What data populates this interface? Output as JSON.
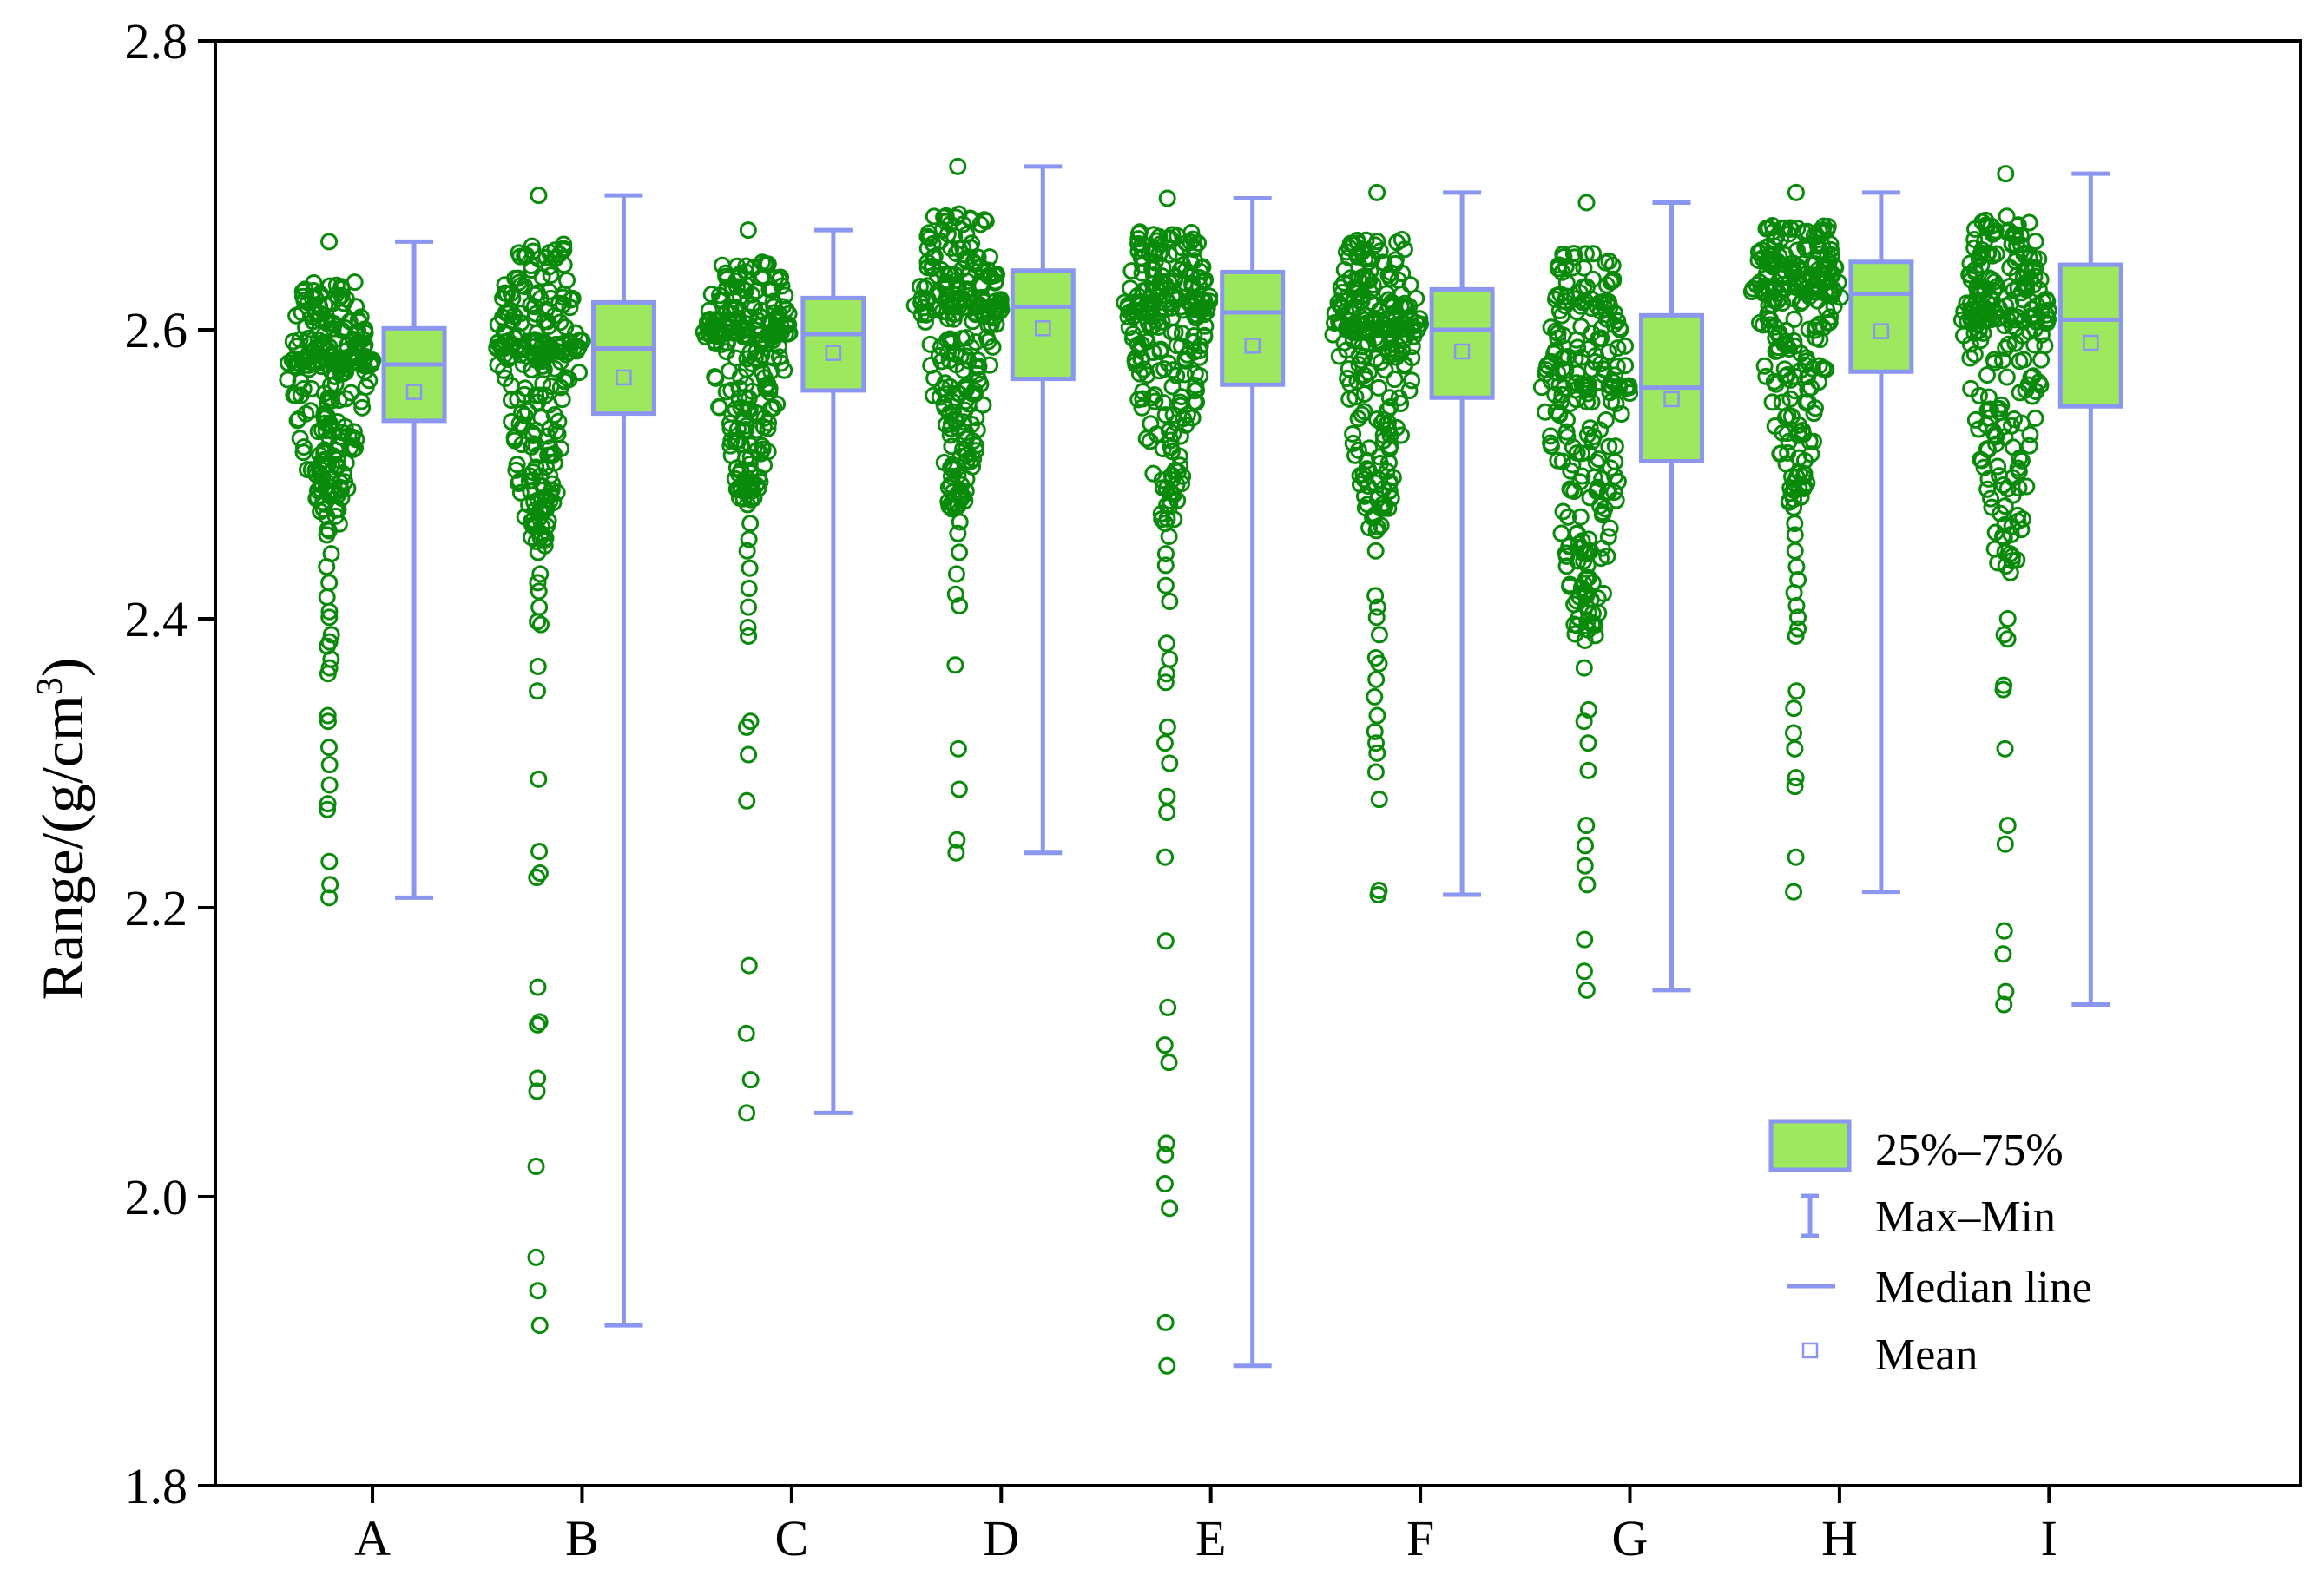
{
  "chart_data": {
    "type": "box",
    "title": "",
    "xlabel": "",
    "ylabel_main": "Range/(g/cm",
    "ylabel_sup": "3",
    "ylabel_close": ")",
    "ylim": [
      1.8,
      2.8
    ],
    "yticks": [
      "1.8",
      "2.0",
      "2.2",
      "2.4",
      "2.6",
      "2.8"
    ],
    "categories": [
      "A",
      "B",
      "C",
      "D",
      "E",
      "F",
      "G",
      "H",
      "I"
    ],
    "colors": {
      "points": "#0a8a0a",
      "box_fill": "#9de85e",
      "box_edge": "#8a96f0",
      "axis": "#000000"
    },
    "boxes": [
      {
        "name": "A",
        "min": 2.207,
        "q1": 2.537,
        "median": 2.576,
        "q3": 2.601,
        "max": 2.661,
        "mean": 2.557
      },
      {
        "name": "B",
        "min": 1.911,
        "q1": 2.542,
        "median": 2.587,
        "q3": 2.619,
        "max": 2.693,
        "mean": 2.567
      },
      {
        "name": "C",
        "min": 2.058,
        "q1": 2.558,
        "median": 2.597,
        "q3": 2.622,
        "max": 2.669,
        "mean": 2.584
      },
      {
        "name": "D",
        "min": 2.238,
        "q1": 2.566,
        "median": 2.616,
        "q3": 2.641,
        "max": 2.713,
        "mean": 2.601
      },
      {
        "name": "E",
        "min": 1.883,
        "q1": 2.562,
        "median": 2.612,
        "q3": 2.64,
        "max": 2.691,
        "mean": 2.589
      },
      {
        "name": "F",
        "min": 2.209,
        "q1": 2.553,
        "median": 2.6,
        "q3": 2.628,
        "max": 2.695,
        "mean": 2.585
      },
      {
        "name": "G",
        "min": 2.143,
        "q1": 2.509,
        "median": 2.56,
        "q3": 2.61,
        "max": 2.688,
        "mean": 2.552
      },
      {
        "name": "H",
        "min": 2.211,
        "q1": 2.571,
        "median": 2.625,
        "q3": 2.647,
        "max": 2.695,
        "mean": 2.599
      },
      {
        "name": "I",
        "min": 2.133,
        "q1": 2.547,
        "median": 2.607,
        "q3": 2.645,
        "max": 2.708,
        "mean": 2.591
      }
    ],
    "outliers": [
      [
        2.207,
        2.216,
        2.232,
        2.268,
        2.272,
        2.285,
        2.299,
        2.311,
        2.329,
        2.333,
        2.362,
        2.366,
        2.372,
        2.381,
        2.384,
        2.389,
        2.401,
        2.405,
        2.415,
        2.425,
        2.436,
        2.445,
        2.458,
        2.462,
        2.471,
        2.487,
        2.495,
        2.507
      ],
      [
        1.911,
        1.935,
        1.958,
        2.021,
        2.073,
        2.082,
        2.119,
        2.121,
        2.145,
        2.221,
        2.224,
        2.239,
        2.289,
        2.35,
        2.367,
        2.396,
        2.398,
        2.408,
        2.419,
        2.425,
        2.431,
        2.446,
        2.459,
        2.464,
        2.475,
        2.482
      ],
      [
        2.058,
        2.081,
        2.113,
        2.16,
        2.274,
        2.306,
        2.325,
        2.329,
        2.388,
        2.394,
        2.408,
        2.421,
        2.435,
        2.447,
        2.455,
        2.466,
        2.479,
        2.49,
        2.501
      ],
      [
        2.238,
        2.247,
        2.282,
        2.31,
        2.368,
        2.409,
        2.417,
        2.431,
        2.446,
        2.459,
        2.467,
        2.478,
        2.488,
        2.499
      ],
      [
        1.883,
        1.913,
        1.992,
        2.009,
        2.029,
        2.037,
        2.093,
        2.105,
        2.131,
        2.177,
        2.235,
        2.266,
        2.277,
        2.3,
        2.314,
        2.325,
        2.356,
        2.362,
        2.372,
        2.383,
        2.412,
        2.423,
        2.437,
        2.445,
        2.457,
        2.466,
        2.478,
        2.49
      ],
      [
        2.209,
        2.212,
        2.275,
        2.294,
        2.307,
        2.314,
        2.322,
        2.333,
        2.346,
        2.358,
        2.369,
        2.373,
        2.389,
        2.401,
        2.408,
        2.416,
        2.447,
        2.461,
        2.472,
        2.483,
        2.494
      ],
      [
        2.143,
        2.156,
        2.178,
        2.216,
        2.229,
        2.243,
        2.257,
        2.295,
        2.314,
        2.329,
        2.337,
        2.366,
        2.385,
        2.398,
        2.409,
        2.416,
        2.428,
        2.437,
        2.445,
        2.455
      ],
      [
        2.211,
        2.235,
        2.284,
        2.29,
        2.31,
        2.321,
        2.338,
        2.35,
        2.388,
        2.393,
        2.401,
        2.409,
        2.418,
        2.427,
        2.436,
        2.447,
        2.458,
        2.466,
        2.477,
        2.489,
        2.498
      ],
      [
        2.133,
        2.142,
        2.168,
        2.184,
        2.244,
        2.257,
        2.31,
        2.351,
        2.354,
        2.386,
        2.389,
        2.4,
        2.446,
        2.456,
        2.465,
        2.478,
        2.49
      ]
    ],
    "legend": {
      "position": "bottom-right",
      "items": [
        "25%–75%",
        "Max–Min",
        "Median line",
        "Mean"
      ]
    }
  }
}
